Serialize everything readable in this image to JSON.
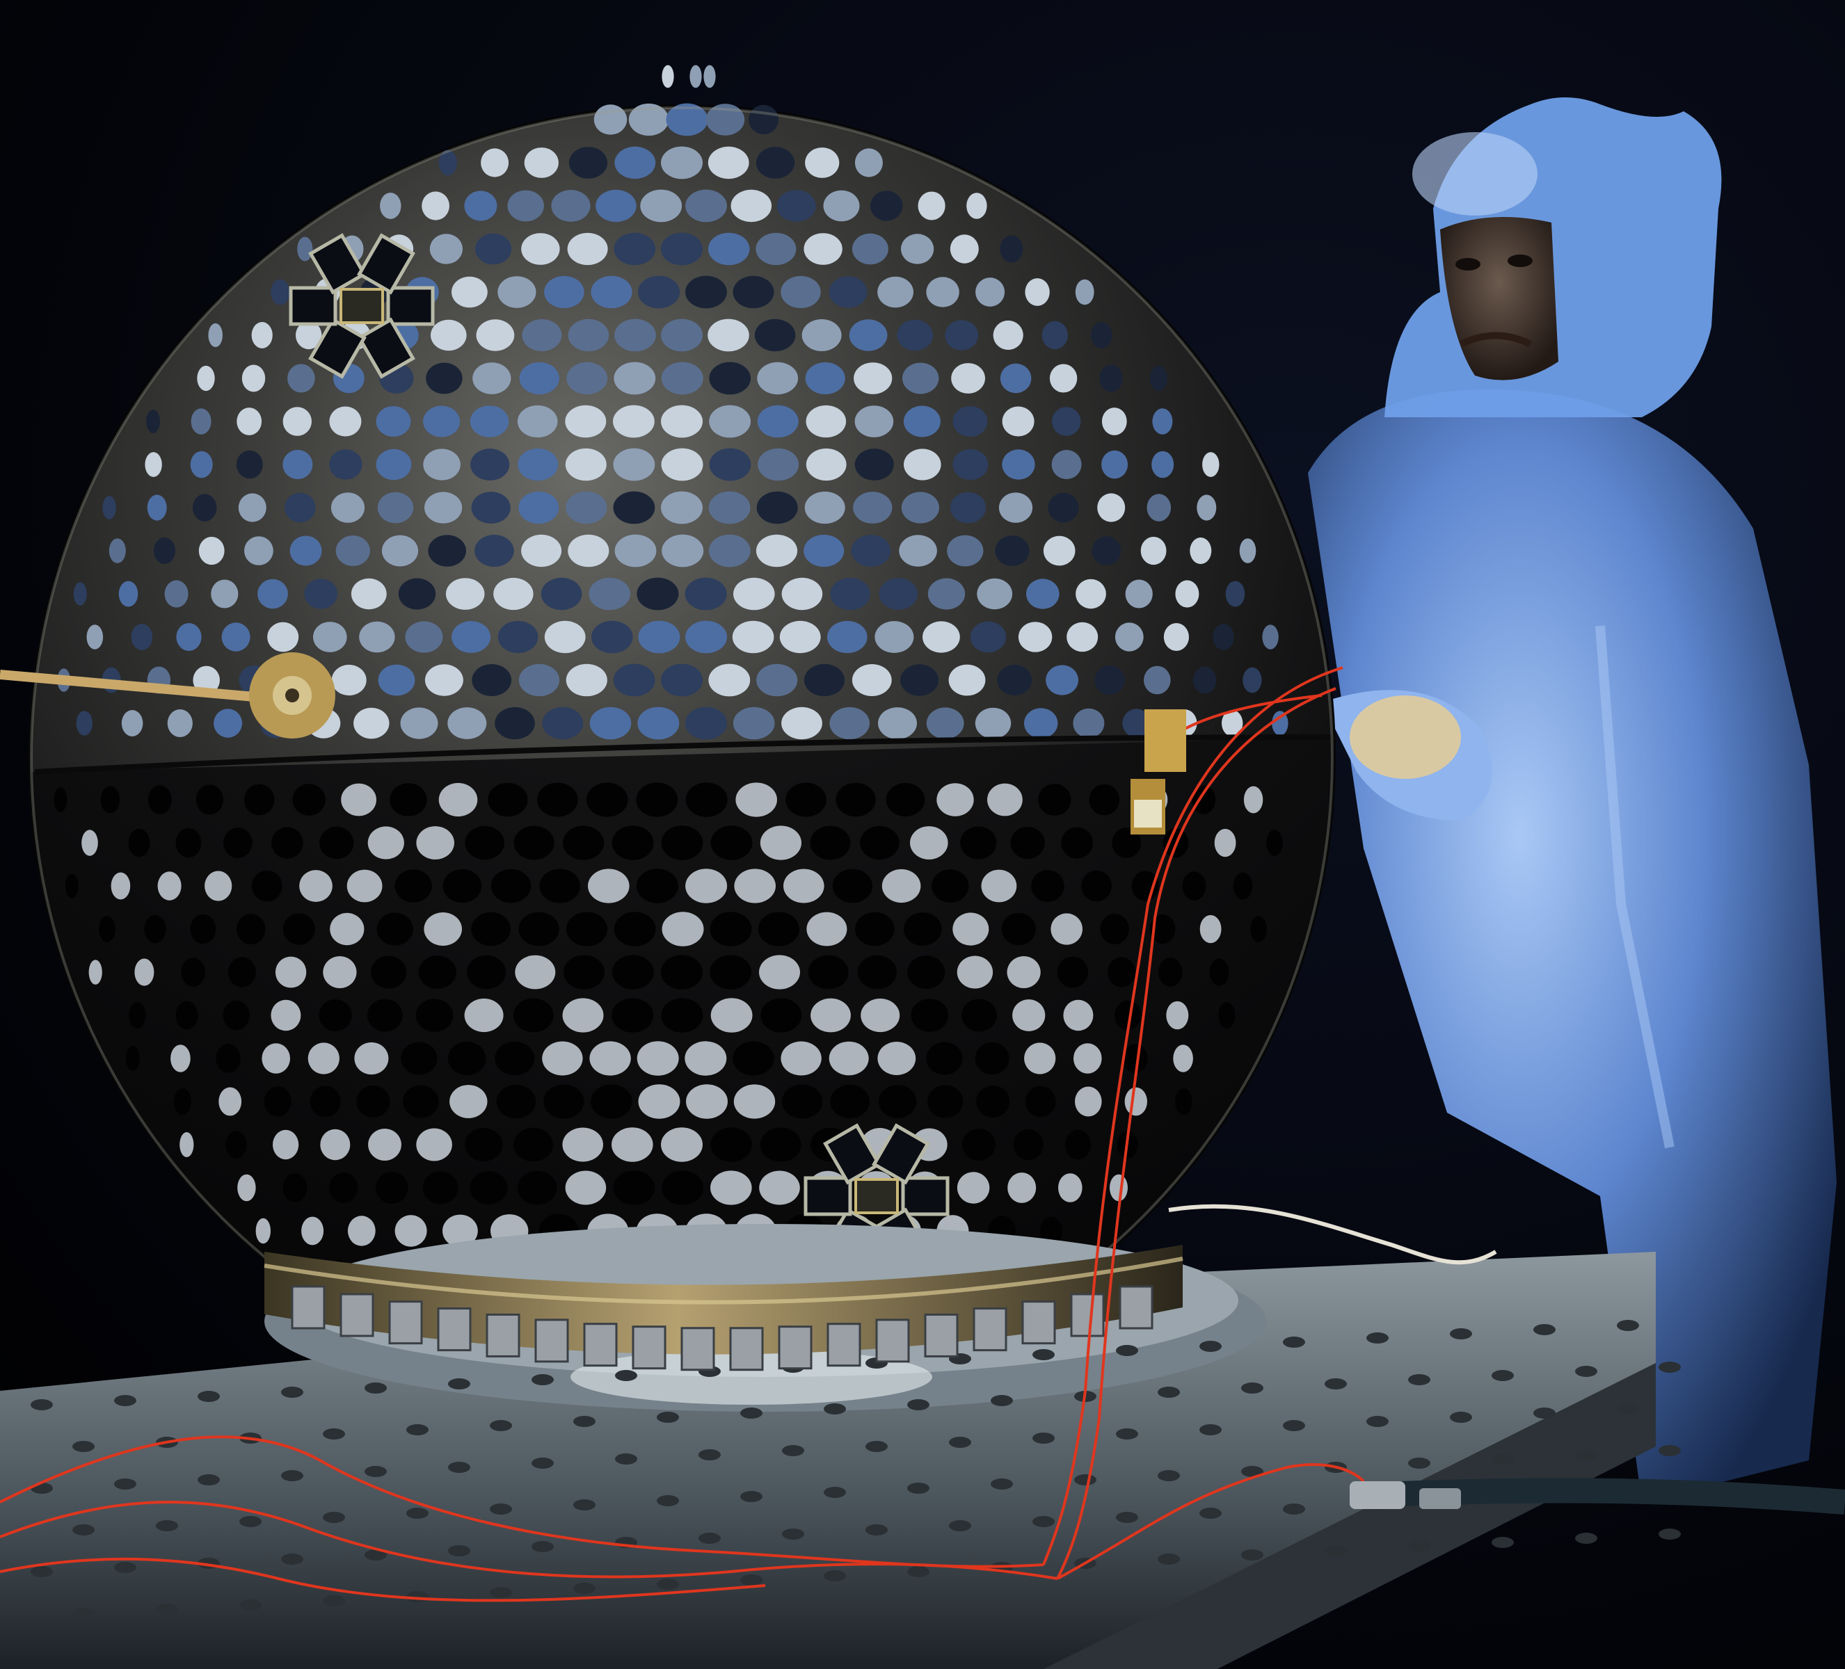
{
  "photo": {
    "subjects": [
      "satellite-sphere",
      "retroreflector-panels",
      "technician",
      "mounting-base",
      "red-cables"
    ],
    "colors": {
      "background": "#030409",
      "sphere_body": "#1a1a1c",
      "reflector_blue": "#4d6ea3",
      "reflector_light": "#c8d2dc",
      "mirror_silver": "#aeb4bb",
      "cable_red": "#e0361e",
      "gold_fitting": "#c8a44a",
      "suit_blue": "#6f9fe8",
      "base_metal": "#6e7a84"
    }
  }
}
